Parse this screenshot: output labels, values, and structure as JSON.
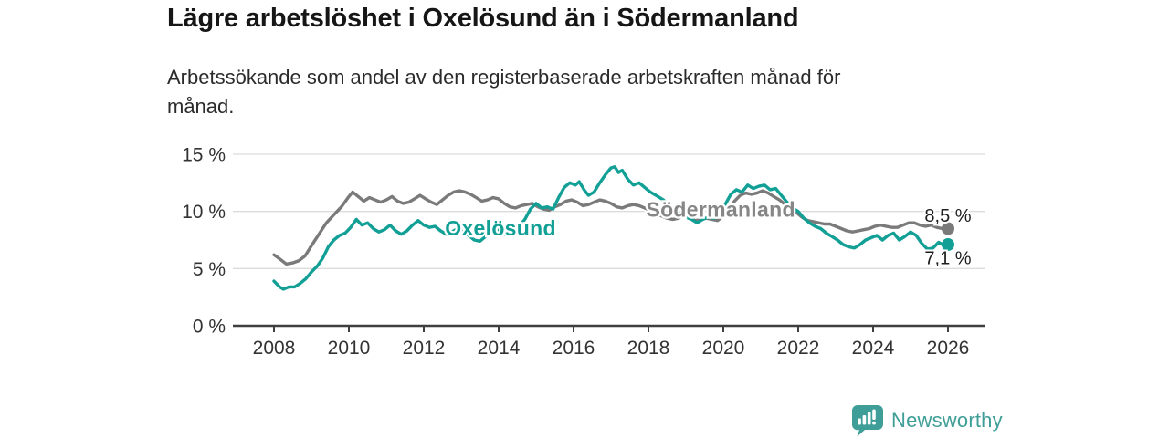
{
  "header": {
    "title": "Lägre arbetslöshet i Oxelösund än i Södermanland",
    "subtitle_lines": [
      "Arbetssökande som andel av den registerbaserade arbetskraften månad för",
      "månad."
    ]
  },
  "footer": {
    "brand": "Newsworthy",
    "logo_icon": "bar-chart-speech-bubble-icon"
  },
  "colors": {
    "background": "#ffffff",
    "title_text": "#161616",
    "subtitle_text": "#2b2b2b",
    "axis": "#3f3f3f",
    "tick_text": "#333333",
    "gridline": "#dcdcdc",
    "oxelosund_teal": "#12a096",
    "sodermanland_gray": "#7a7a7a",
    "sodermanland_label_gray": "#868686",
    "value_label_text": "#1f1f1f",
    "brand_teal": "#3f9e97"
  },
  "chart_data": {
    "type": "line",
    "title": "Lägre arbetslöshet i Oxelösund än i Södermanland",
    "subtitle": "Arbetssökande som andel av den registerbaserade arbetskraften månad för månad.",
    "xlabel": "",
    "ylabel": "",
    "unit": "%",
    "grid": "horizontal",
    "legend_position": "inline",
    "xlim": [
      2007.9,
      2027.0
    ],
    "ylim": [
      0,
      15
    ],
    "y_ticks": [
      {
        "value": 0,
        "label": "0 %"
      },
      {
        "value": 5,
        "label": "5 %"
      },
      {
        "value": 10,
        "label": "10 %"
      },
      {
        "value": 15,
        "label": "15 %"
      }
    ],
    "x_ticks": [
      {
        "value": 2008,
        "label": "2008"
      },
      {
        "value": 2010,
        "label": "2010"
      },
      {
        "value": 2012,
        "label": "2012"
      },
      {
        "value": 2014,
        "label": "2014"
      },
      {
        "value": 2016,
        "label": "2016"
      },
      {
        "value": 2018,
        "label": "2018"
      },
      {
        "value": 2020,
        "label": "2020"
      },
      {
        "value": 2022,
        "label": "2022"
      },
      {
        "value": 2024,
        "label": "2024"
      },
      {
        "value": 2026,
        "label": "2026"
      }
    ],
    "series": [
      {
        "name": "Södermanland",
        "color": "#7a7a7a",
        "label_color": "#868686",
        "inline_label": {
          "text": "Södermanland",
          "x": 2019.93,
          "y": 9.55
        },
        "end_label": {
          "text": "8,5 %",
          "position": "above"
        },
        "end_value": 8.5,
        "points": [
          [
            2008.0,
            6.2
          ],
          [
            2008.17,
            5.8
          ],
          [
            2008.33,
            5.4
          ],
          [
            2008.5,
            5.5
          ],
          [
            2008.67,
            5.7
          ],
          [
            2008.83,
            6.1
          ],
          [
            2009.0,
            7.0
          ],
          [
            2009.2,
            8.0
          ],
          [
            2009.4,
            9.0
          ],
          [
            2009.6,
            9.7
          ],
          [
            2009.8,
            10.4
          ],
          [
            2010.0,
            11.3
          ],
          [
            2010.1,
            11.7
          ],
          [
            2010.25,
            11.3
          ],
          [
            2010.4,
            10.9
          ],
          [
            2010.55,
            11.2
          ],
          [
            2010.7,
            11.0
          ],
          [
            2010.85,
            10.8
          ],
          [
            2011.0,
            11.0
          ],
          [
            2011.15,
            11.3
          ],
          [
            2011.3,
            10.9
          ],
          [
            2011.45,
            10.7
          ],
          [
            2011.6,
            10.8
          ],
          [
            2011.75,
            11.1
          ],
          [
            2011.9,
            11.4
          ],
          [
            2012.05,
            11.1
          ],
          [
            2012.2,
            10.8
          ],
          [
            2012.35,
            10.6
          ],
          [
            2012.5,
            11.0
          ],
          [
            2012.65,
            11.4
          ],
          [
            2012.8,
            11.7
          ],
          [
            2012.95,
            11.8
          ],
          [
            2013.1,
            11.7
          ],
          [
            2013.25,
            11.5
          ],
          [
            2013.4,
            11.2
          ],
          [
            2013.55,
            10.9
          ],
          [
            2013.7,
            11.0
          ],
          [
            2013.85,
            11.2
          ],
          [
            2014.0,
            11.1
          ],
          [
            2014.15,
            10.7
          ],
          [
            2014.3,
            10.4
          ],
          [
            2014.45,
            10.3
          ],
          [
            2014.6,
            10.5
          ],
          [
            2014.75,
            10.6
          ],
          [
            2014.9,
            10.7
          ],
          [
            2015.05,
            10.4
          ],
          [
            2015.2,
            10.2
          ],
          [
            2015.35,
            10.1
          ],
          [
            2015.5,
            10.4
          ],
          [
            2015.65,
            10.6
          ],
          [
            2015.8,
            10.9
          ],
          [
            2015.95,
            11.0
          ],
          [
            2016.1,
            10.8
          ],
          [
            2016.25,
            10.5
          ],
          [
            2016.4,
            10.6
          ],
          [
            2016.55,
            10.8
          ],
          [
            2016.7,
            11.0
          ],
          [
            2016.85,
            10.9
          ],
          [
            2017.0,
            10.7
          ],
          [
            2017.15,
            10.4
          ],
          [
            2017.3,
            10.3
          ],
          [
            2017.45,
            10.5
          ],
          [
            2017.6,
            10.6
          ],
          [
            2017.75,
            10.5
          ],
          [
            2017.9,
            10.3
          ],
          [
            2018.05,
            10.1
          ],
          [
            2018.2,
            9.8
          ],
          [
            2018.35,
            9.6
          ],
          [
            2018.5,
            9.4
          ],
          [
            2018.65,
            9.3
          ],
          [
            2018.8,
            9.4
          ],
          [
            2018.95,
            9.6
          ],
          [
            2019.1,
            9.4
          ],
          [
            2019.25,
            9.2
          ],
          [
            2019.4,
            9.3
          ],
          [
            2019.55,
            9.4
          ],
          [
            2019.7,
            9.3
          ],
          [
            2019.85,
            9.2
          ],
          [
            2020.0,
            9.6
          ],
          [
            2020.15,
            10.2
          ],
          [
            2020.3,
            10.9
          ],
          [
            2020.45,
            11.4
          ],
          [
            2020.6,
            11.6
          ],
          [
            2020.75,
            11.5
          ],
          [
            2020.9,
            11.6
          ],
          [
            2021.05,
            11.8
          ],
          [
            2021.2,
            11.6
          ],
          [
            2021.35,
            11.3
          ],
          [
            2021.5,
            11.0
          ],
          [
            2021.65,
            10.6
          ],
          [
            2021.8,
            10.2
          ],
          [
            2021.95,
            9.9
          ],
          [
            2022.1,
            9.5
          ],
          [
            2022.25,
            9.2
          ],
          [
            2022.4,
            9.1
          ],
          [
            2022.55,
            9.0
          ],
          [
            2022.7,
            8.9
          ],
          [
            2022.85,
            8.9
          ],
          [
            2023.0,
            8.7
          ],
          [
            2023.15,
            8.5
          ],
          [
            2023.3,
            8.3
          ],
          [
            2023.45,
            8.2
          ],
          [
            2023.6,
            8.3
          ],
          [
            2023.75,
            8.4
          ],
          [
            2023.9,
            8.5
          ],
          [
            2024.05,
            8.7
          ],
          [
            2024.2,
            8.8
          ],
          [
            2024.35,
            8.7
          ],
          [
            2024.5,
            8.6
          ],
          [
            2024.65,
            8.6
          ],
          [
            2024.8,
            8.8
          ],
          [
            2024.95,
            9.0
          ],
          [
            2025.1,
            9.0
          ],
          [
            2025.25,
            8.8
          ],
          [
            2025.4,
            8.7
          ],
          [
            2025.55,
            8.8
          ],
          [
            2025.7,
            8.6
          ],
          [
            2025.85,
            8.5
          ],
          [
            2026.0,
            8.5
          ]
        ]
      },
      {
        "name": "Oxelösund",
        "color": "#12a096",
        "label_color": "#12a096",
        "inline_label": {
          "text": "Oxelösund",
          "x": 2014.05,
          "y": 7.9
        },
        "end_label": {
          "text": "7,1 %",
          "position": "below"
        },
        "end_value": 7.1,
        "points": [
          [
            2008.0,
            3.9
          ],
          [
            2008.15,
            3.4
          ],
          [
            2008.25,
            3.2
          ],
          [
            2008.4,
            3.4
          ],
          [
            2008.55,
            3.4
          ],
          [
            2008.7,
            3.7
          ],
          [
            2008.85,
            4.1
          ],
          [
            2009.0,
            4.7
          ],
          [
            2009.15,
            5.2
          ],
          [
            2009.3,
            5.9
          ],
          [
            2009.45,
            6.9
          ],
          [
            2009.6,
            7.5
          ],
          [
            2009.75,
            7.9
          ],
          [
            2009.9,
            8.1
          ],
          [
            2010.05,
            8.6
          ],
          [
            2010.2,
            9.3
          ],
          [
            2010.35,
            8.8
          ],
          [
            2010.5,
            9.0
          ],
          [
            2010.65,
            8.5
          ],
          [
            2010.8,
            8.2
          ],
          [
            2010.95,
            8.4
          ],
          [
            2011.1,
            8.8
          ],
          [
            2011.25,
            8.3
          ],
          [
            2011.4,
            8.0
          ],
          [
            2011.55,
            8.3
          ],
          [
            2011.7,
            8.8
          ],
          [
            2011.85,
            9.2
          ],
          [
            2012.0,
            8.8
          ],
          [
            2012.15,
            8.6
          ],
          [
            2012.3,
            8.7
          ],
          [
            2012.45,
            8.3
          ],
          [
            2012.6,
            8.0
          ],
          [
            2012.75,
            8.2
          ],
          [
            2012.9,
            8.5
          ],
          [
            2013.05,
            8.2
          ],
          [
            2013.2,
            7.9
          ],
          [
            2013.35,
            7.5
          ],
          [
            2013.5,
            7.4
          ],
          [
            2013.65,
            7.8
          ],
          [
            2013.8,
            8.2
          ],
          [
            2013.95,
            8.4
          ],
          [
            2014.1,
            8.1
          ],
          [
            2014.25,
            7.9
          ],
          [
            2014.4,
            8.2
          ],
          [
            2014.55,
            8.7
          ],
          [
            2014.7,
            9.3
          ],
          [
            2014.85,
            10.2
          ],
          [
            2015.0,
            10.7
          ],
          [
            2015.15,
            10.3
          ],
          [
            2015.3,
            10.4
          ],
          [
            2015.45,
            10.2
          ],
          [
            2015.6,
            11.2
          ],
          [
            2015.75,
            12.1
          ],
          [
            2015.9,
            12.5
          ],
          [
            2016.05,
            12.3
          ],
          [
            2016.15,
            12.6
          ],
          [
            2016.3,
            11.8
          ],
          [
            2016.4,
            11.4
          ],
          [
            2016.55,
            11.7
          ],
          [
            2016.7,
            12.5
          ],
          [
            2016.85,
            13.2
          ],
          [
            2017.0,
            13.8
          ],
          [
            2017.1,
            13.9
          ],
          [
            2017.2,
            13.4
          ],
          [
            2017.3,
            13.6
          ],
          [
            2017.45,
            12.8
          ],
          [
            2017.6,
            12.3
          ],
          [
            2017.75,
            12.5
          ],
          [
            2017.9,
            12.1
          ],
          [
            2018.05,
            11.7
          ],
          [
            2018.2,
            11.4
          ],
          [
            2018.4,
            11.0
          ],
          [
            2018.6,
            10.4
          ],
          [
            2018.8,
            9.9
          ],
          [
            2019.0,
            9.5
          ],
          [
            2019.15,
            9.3
          ],
          [
            2019.3,
            9.0
          ],
          [
            2019.45,
            9.3
          ],
          [
            2019.6,
            9.5
          ],
          [
            2019.75,
            9.4
          ],
          [
            2019.9,
            9.8
          ],
          [
            2020.05,
            10.6
          ],
          [
            2020.2,
            11.5
          ],
          [
            2020.35,
            11.9
          ],
          [
            2020.5,
            11.7
          ],
          [
            2020.65,
            12.3
          ],
          [
            2020.8,
            12.0
          ],
          [
            2020.95,
            12.2
          ],
          [
            2021.1,
            12.3
          ],
          [
            2021.25,
            11.9
          ],
          [
            2021.4,
            12.0
          ],
          [
            2021.55,
            11.4
          ],
          [
            2021.7,
            10.8
          ],
          [
            2021.85,
            10.3
          ],
          [
            2022.0,
            10.0
          ],
          [
            2022.15,
            9.4
          ],
          [
            2022.3,
            9.0
          ],
          [
            2022.45,
            8.7
          ],
          [
            2022.6,
            8.5
          ],
          [
            2022.75,
            8.1
          ],
          [
            2022.9,
            7.8
          ],
          [
            2023.05,
            7.5
          ],
          [
            2023.2,
            7.1
          ],
          [
            2023.35,
            6.9
          ],
          [
            2023.5,
            6.8
          ],
          [
            2023.65,
            7.1
          ],
          [
            2023.8,
            7.5
          ],
          [
            2023.95,
            7.7
          ],
          [
            2024.1,
            7.9
          ],
          [
            2024.25,
            7.5
          ],
          [
            2024.4,
            7.9
          ],
          [
            2024.55,
            8.1
          ],
          [
            2024.7,
            7.5
          ],
          [
            2024.85,
            7.8
          ],
          [
            2025.0,
            8.2
          ],
          [
            2025.15,
            7.9
          ],
          [
            2025.3,
            7.2
          ],
          [
            2025.45,
            6.7
          ],
          [
            2025.6,
            6.8
          ],
          [
            2025.75,
            7.3
          ],
          [
            2025.9,
            7.0
          ],
          [
            2026.0,
            7.1
          ]
        ]
      }
    ]
  }
}
